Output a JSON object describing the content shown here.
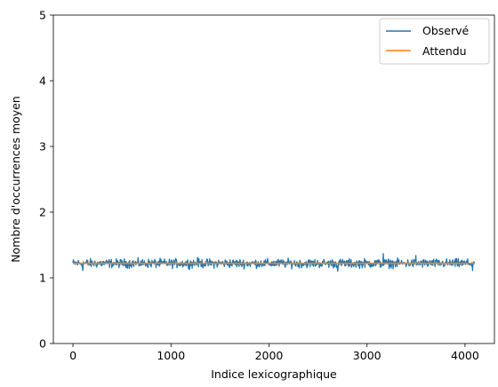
{
  "chart_data": {
    "type": "line",
    "title": "",
    "xlabel": "Indice lexicographique",
    "ylabel": "Nombre d'occurrences moyen",
    "xlim": [
      -200,
      4300
    ],
    "ylim": [
      0,
      5
    ],
    "xticks": [
      0,
      1000,
      2000,
      3000,
      4000
    ],
    "yticks": [
      0,
      1,
      2,
      3,
      4,
      5
    ],
    "grid": false,
    "legend_position": "top-right",
    "series": [
      {
        "name": "Observé",
        "color": "#1f77b4",
        "x_range": [
          0,
          4095
        ],
        "mean": 1.22,
        "typical_band": [
          1.15,
          1.29
        ],
        "extremes": [
          1.09,
          1.37
        ],
        "notable_points": [
          {
            "x": 3165,
            "y": 1.37
          },
          {
            "x": 3500,
            "y": 1.34
          },
          {
            "x": 2700,
            "y": 1.1
          },
          {
            "x": 4075,
            "y": 1.11
          },
          {
            "x": 100,
            "y": 1.11
          },
          {
            "x": 1270,
            "y": 1.31
          }
        ]
      },
      {
        "name": "Attendu",
        "color": "#ff7f0e",
        "x": [
          0,
          4095
        ],
        "values": [
          1.22,
          1.22
        ]
      }
    ]
  }
}
